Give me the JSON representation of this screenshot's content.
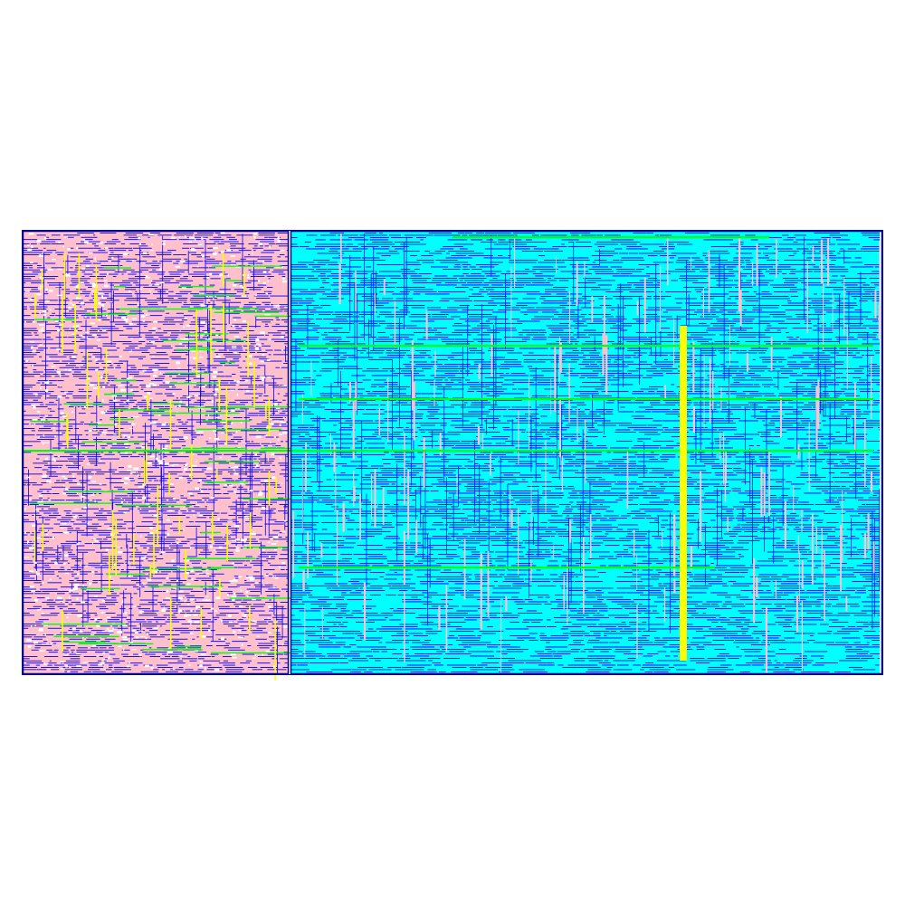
{
  "view": {
    "background": "#ffffff"
  },
  "palette": {
    "frame": "#00008b",
    "left_fill": "#ffc0cb",
    "right_fill": "#00ffff",
    "wire_blue": "#0000ff",
    "wire_green": "#00ff00",
    "wire_yellow": "#ffff00",
    "wire_pink": "#ffc0cb",
    "cell_white": "#ffffff"
  },
  "regions": [
    {
      "id": "left-block",
      "fill_color": "#ffc0cb",
      "dominant_wire_color": "#0000ff"
    },
    {
      "id": "right-block",
      "fill_color": "#00ffff",
      "dominant_wire_color": "#0000ff"
    }
  ]
}
